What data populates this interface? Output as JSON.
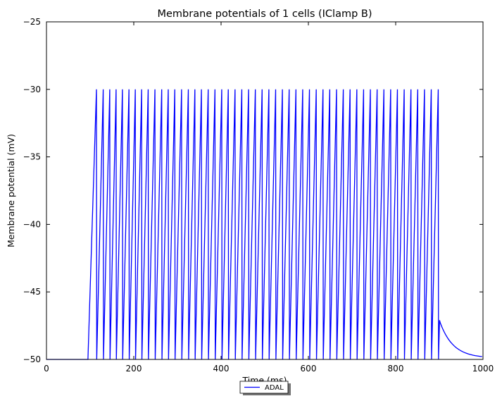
{
  "chart_data": {
    "type": "line",
    "title": "Membrane potentials of 1 cells (IClamp B)",
    "xlabel": "Time (ms)",
    "ylabel": "Membrane potential (mV)",
    "xlim": [
      0,
      1000
    ],
    "ylim": [
      -50,
      -25
    ],
    "x_ticks": [
      0,
      200,
      400,
      600,
      800,
      1000
    ],
    "y_ticks": [
      -50,
      -45,
      -40,
      -35,
      -30,
      -25
    ],
    "x_tick_labels": [
      "0",
      "200",
      "400",
      "600",
      "800",
      "1000"
    ],
    "y_tick_labels": [
      "−50",
      "−45",
      "−40",
      "−35",
      "−30",
      "−25"
    ],
    "grid": false,
    "legend_position": "bottom-center",
    "series": [
      {
        "name": "ADAL",
        "color": "#0000ff",
        "baseline_mv": -50,
        "stim_start_ms": 100,
        "stim_end_ms": 900,
        "spike_times_ms": [
          114.5,
          130,
          145,
          159.5,
          174,
          189,
          203.5,
          218,
          233,
          248.5,
          264,
          279,
          294,
          309.5,
          325,
          340,
          355,
          370.5,
          386,
          401.5,
          416.5,
          432,
          447.5,
          463,
          478.5,
          494,
          509.5,
          525,
          540.5,
          556,
          571.5,
          587,
          602.5,
          618,
          633.5,
          649,
          664.5,
          680,
          695.5,
          711,
          726.5,
          742,
          757.5,
          773,
          788.5,
          804,
          819.5,
          835,
          850.5,
          866,
          881.5,
          897.5
        ],
        "spike_peak_mv": -30,
        "reset_mv": -50,
        "post_stim_peak_mv": -47.1,
        "decay_end_mv": -49.9
      }
    ]
  }
}
